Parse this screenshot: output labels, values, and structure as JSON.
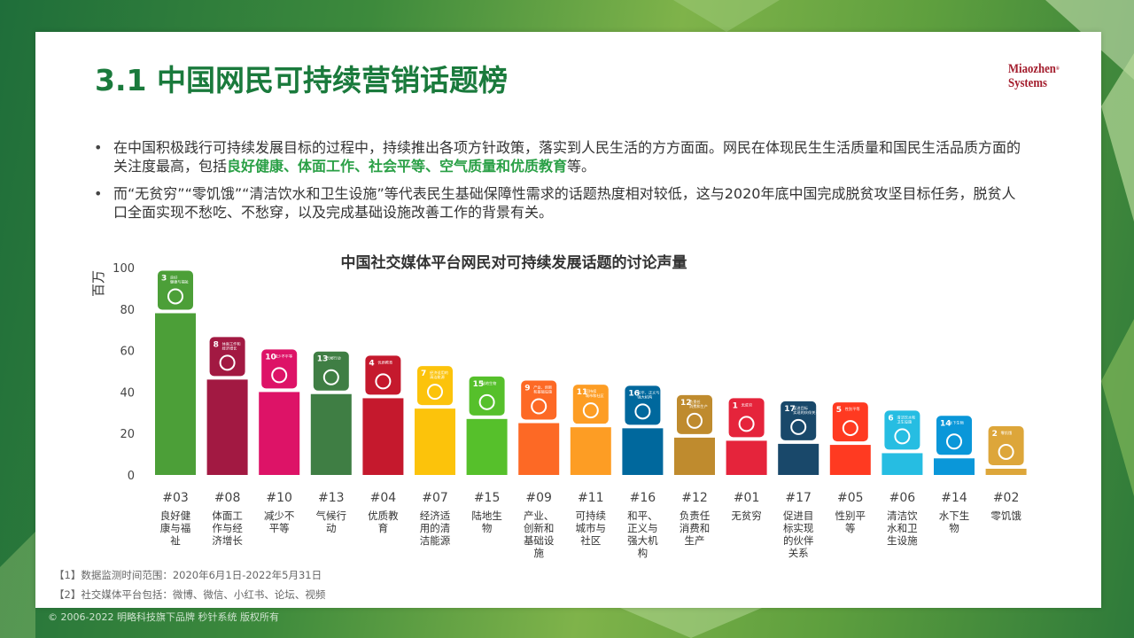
{
  "title": "3.1 中国网民可持续营销话题榜",
  "logo": {
    "line1": "Miaozhen",
    "line2": "Systems",
    "mark": "®"
  },
  "bullets": [
    {
      "parts": [
        "在中国积极践行可持续发展目标的过程中，持续推出各项方针政策，落实到人民生活的方方面面。网民在体现民生生活质量和国民生活品质方面的关注度最高，包括",
        "良好健康、体面工作、社会平等、空气质量和优质教育",
        "等。"
      ]
    },
    {
      "parts": [
        "而“无贫穷”“零饥饿”“清洁饮水和卫生设施”等代表民生基础保障性需求的话题热度相对较低，这与2020年底中国完成脱贫攻坚目标任务，脱贫人口全面实现不愁吃、不愁穿，以及完成基础设施改善工作的背景有关。"
      ]
    }
  ],
  "chart_data": {
    "type": "bar",
    "title": "中国社交媒体平台网民对可持续发展话题的讨论声量",
    "ylabel": "百万",
    "ylim": [
      0,
      100
    ],
    "yticks": [
      0,
      20,
      40,
      60,
      80,
      100
    ],
    "grid": false,
    "categories": [
      "#03",
      "#08",
      "#10",
      "#13",
      "#04",
      "#07",
      "#15",
      "#09",
      "#11",
      "#16",
      "#12",
      "#01",
      "#17",
      "#05",
      "#06",
      "#14",
      "#02"
    ],
    "labels": [
      "良好健康与福祉",
      "体面工作与经济增长",
      "减少不平等",
      "气候行动",
      "优质教育",
      "经济适用的清洁能源",
      "陆地生物",
      "产业、创新和基础设施",
      "可持续城市与社区",
      "和平、正义与强大机构",
      "负责任消费和生产",
      "无贫穷",
      "促进目标实现的伙伴关系",
      "性别平等",
      "清洁饮水和卫生设施",
      "水下生物",
      "零饥饿"
    ],
    "values": [
      78,
      46,
      40,
      39,
      37,
      32,
      27,
      25,
      23,
      22.5,
      18,
      16.5,
      15,
      14.5,
      10.5,
      8,
      3
    ],
    "colors": [
      "#4c9f38",
      "#a21942",
      "#dd1367",
      "#3f7e44",
      "#c5192d",
      "#fcc30b",
      "#56c02b",
      "#fd6925",
      "#fd9d24",
      "#00689d",
      "#bf8b2e",
      "#e5243b",
      "#19486a",
      "#ff3a21",
      "#26bde2",
      "#0a97d9",
      "#dda63a"
    ],
    "icon_numbers": [
      "3",
      "8",
      "10",
      "13",
      "4",
      "7",
      "15",
      "9",
      "11",
      "16",
      "12",
      "1",
      "17",
      "5",
      "6",
      "14",
      "2"
    ],
    "icon_captions": [
      "良好\n健康与福祉",
      "体面工作和\n经济增长",
      "减少不平等",
      "气候行动",
      "优质教育",
      "经济适用的\n清洁能源",
      "陆地生物",
      "产业、创新\n和基础设施",
      "可持续\n城市和社区",
      "和平、正义与\n强大机构",
      "负责任\n消费和生产",
      "无贫穷",
      "促进目标\n实现的伙伴关系",
      "性别平等",
      "清洁饮水和\n卫生设施",
      "水下生物",
      "零饥饿"
    ]
  },
  "notes": [
    "【1】数据监测时间范围：2020年6月1日-2022年5月31日",
    "【2】社交媒体平台包括：微博、微信、小红书、论坛、视频"
  ],
  "copyright": "© 2006-2022 明略科技旗下品牌 秒针系统 版权所有"
}
